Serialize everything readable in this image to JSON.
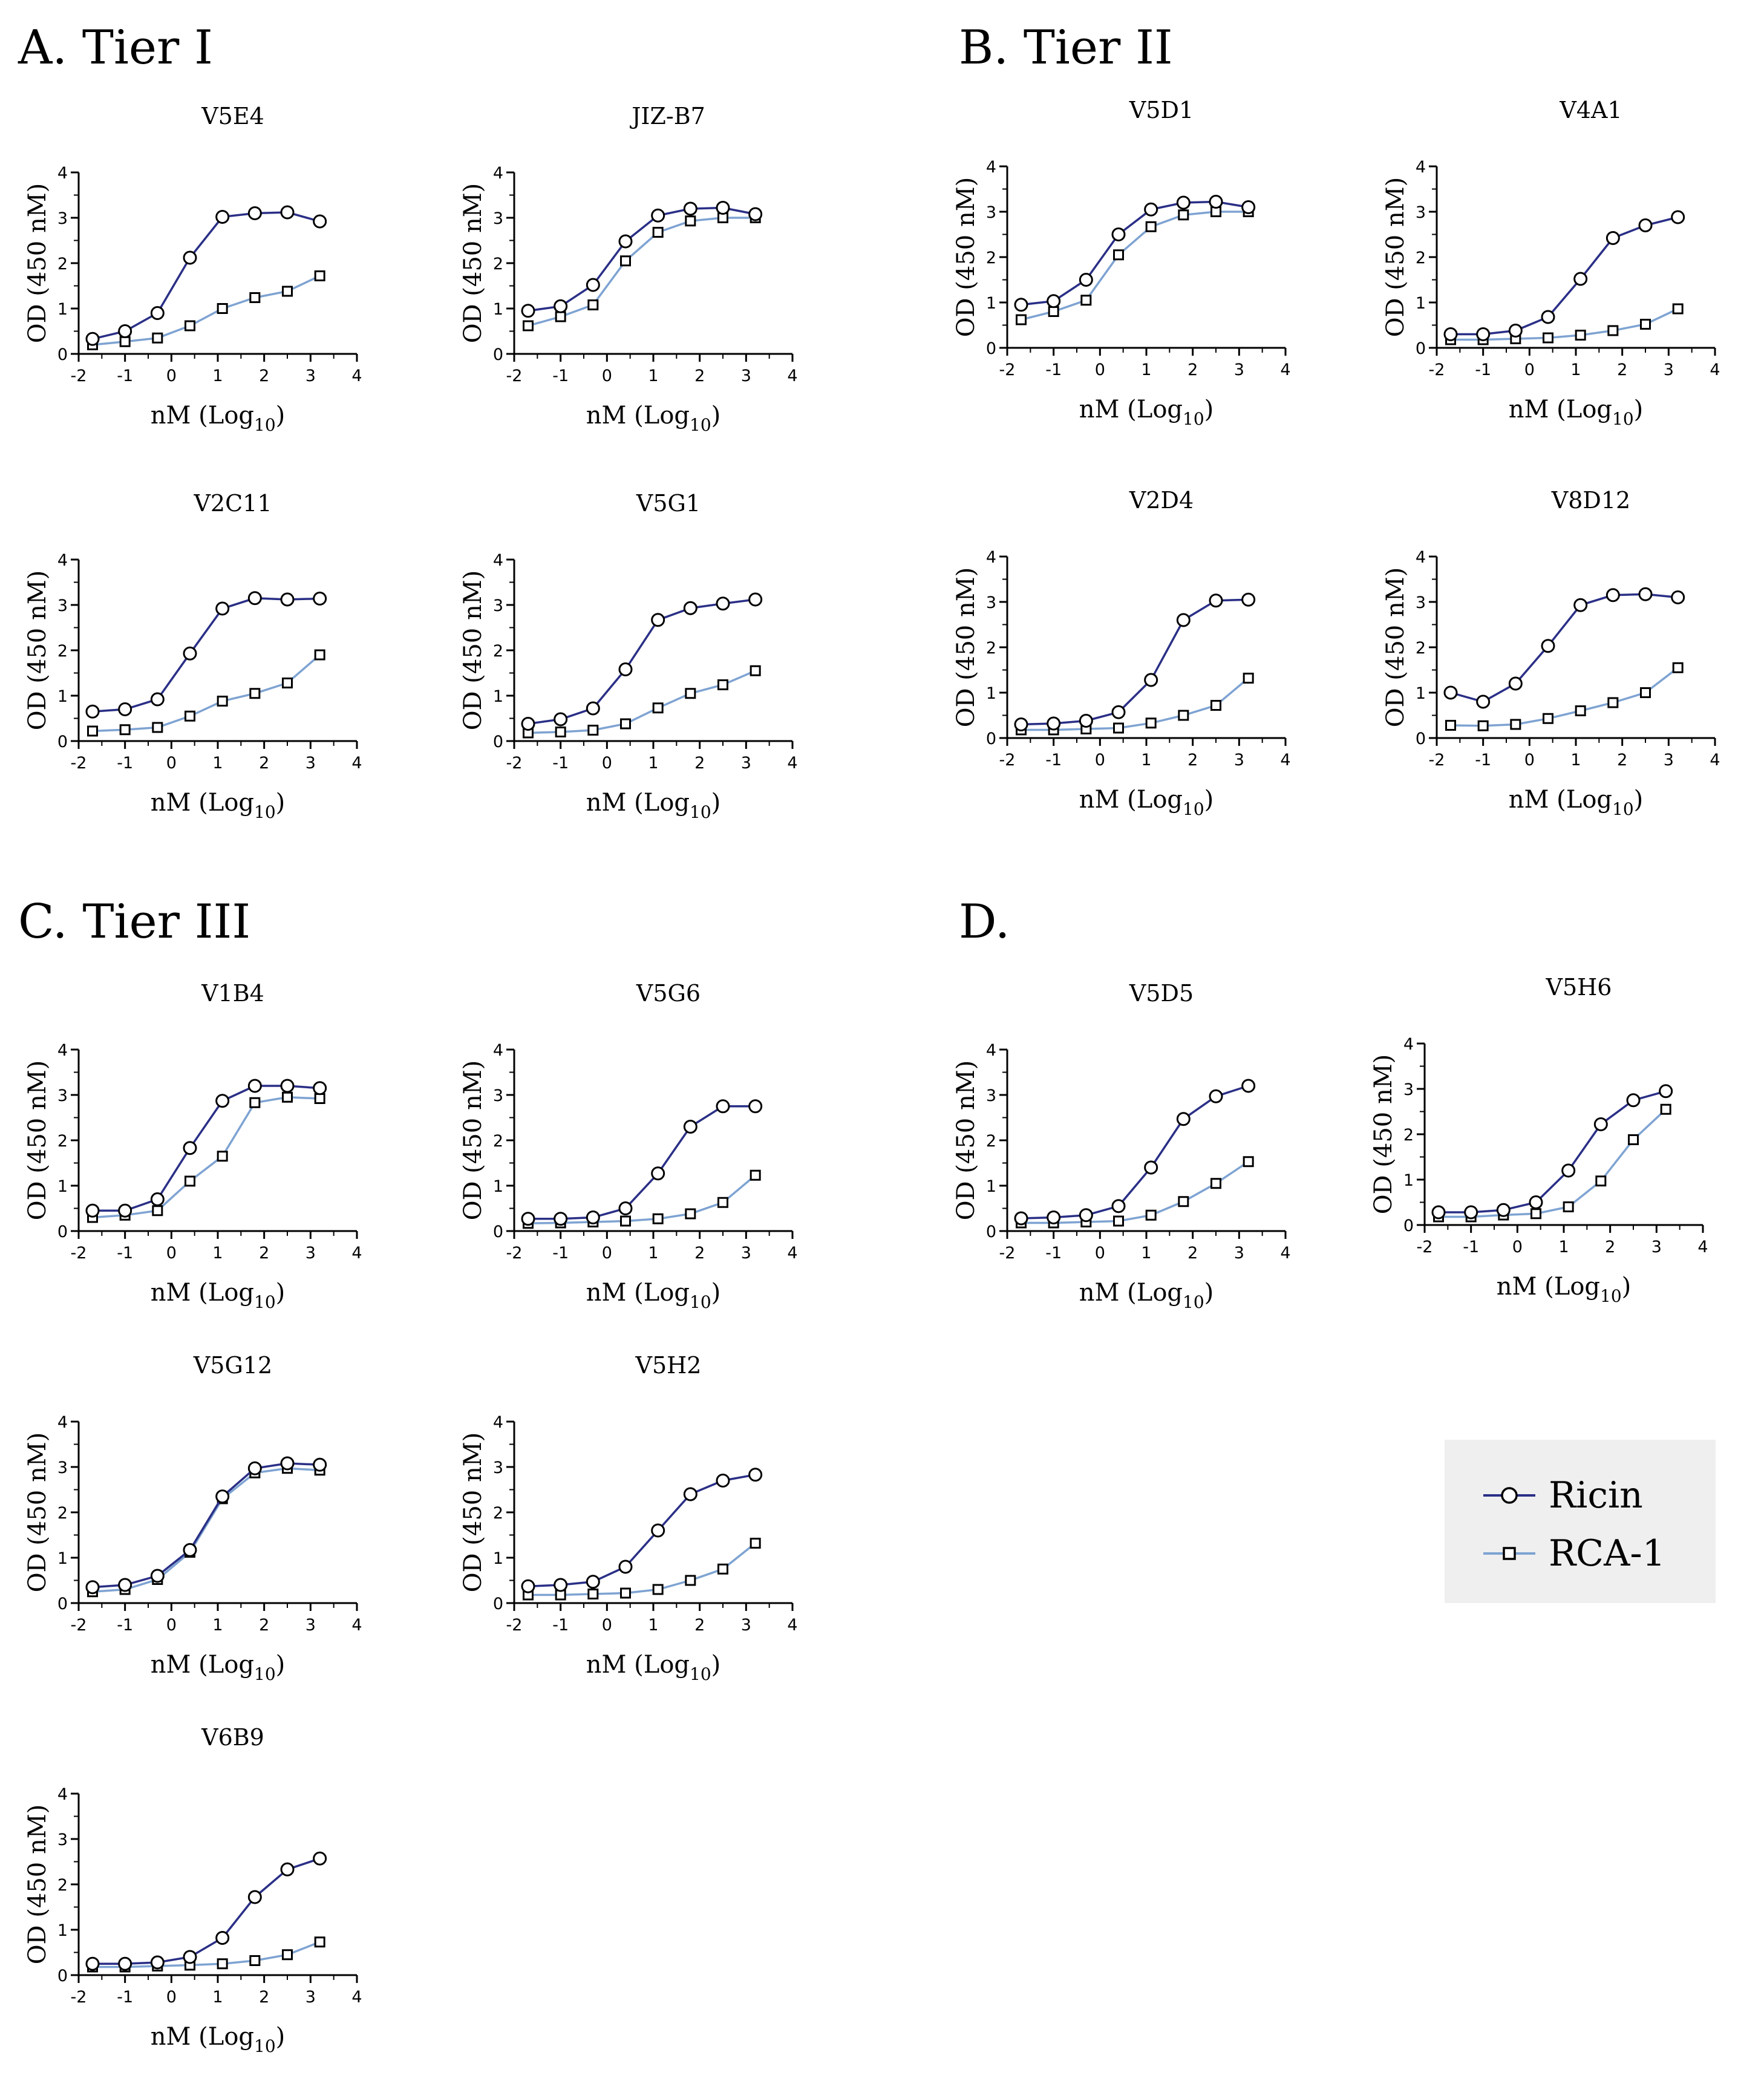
{
  "colors": {
    "ricin": "#2a2f86",
    "rca1": "#7ea3d2",
    "marker_fill": "#ffffff",
    "axis": "#000000",
    "legend_bg": "#efefef"
  },
  "axes": {
    "ylabel": "OD (450 nM)",
    "xlabel_base": "nM (Log",
    "xlabel_sub": "10",
    "xlabel_close": ")",
    "xticks": [
      "-2",
      "-1",
      "0",
      "1",
      "2",
      "3",
      "4"
    ],
    "yticks": [
      "0",
      "1",
      "2",
      "3",
      "4"
    ]
  },
  "legend": {
    "items": [
      {
        "label": "Ricin",
        "series": "ricin",
        "marker": "circle"
      },
      {
        "label": "RCA-1",
        "series": "rca1",
        "marker": "square"
      }
    ]
  },
  "sections": [
    {
      "id": "A",
      "title": "A. Tier I"
    },
    {
      "id": "B",
      "title": "B. Tier II"
    },
    {
      "id": "C",
      "title": "C. Tier III"
    },
    {
      "id": "D",
      "title": "D."
    }
  ],
  "chart_data": [
    {
      "type": "line",
      "title": "V5E4",
      "section": "A",
      "xlim": [
        -2,
        4
      ],
      "ylim": [
        0,
        4
      ],
      "x": [
        -1.7,
        -1.0,
        -0.3,
        0.4,
        1.1,
        1.8,
        2.5,
        3.2
      ],
      "series": [
        {
          "name": "Ricin",
          "values": [
            0.33,
            0.5,
            0.9,
            2.12,
            3.02,
            3.1,
            3.12,
            2.92
          ]
        },
        {
          "name": "RCA-1",
          "values": [
            0.2,
            0.27,
            0.35,
            0.62,
            1.0,
            1.24,
            1.38,
            1.72
          ]
        }
      ]
    },
    {
      "type": "line",
      "title": "JIZ-B7",
      "section": "A",
      "xlim": [
        -2,
        4
      ],
      "ylim": [
        0,
        4
      ],
      "x": [
        -1.7,
        -1.0,
        -0.3,
        0.4,
        1.1,
        1.8,
        2.5,
        3.2
      ],
      "series": [
        {
          "name": "Ricin",
          "values": [
            0.95,
            1.05,
            1.52,
            2.48,
            3.05,
            3.2,
            3.22,
            3.08
          ]
        },
        {
          "name": "RCA-1",
          "values": [
            0.62,
            0.82,
            1.08,
            2.05,
            2.68,
            2.93,
            3.0,
            3.0
          ]
        }
      ]
    },
    {
      "type": "line",
      "title": "V5D1",
      "section": "B",
      "xlim": [
        -2,
        4
      ],
      "ylim": [
        0,
        4
      ],
      "x": [
        -1.7,
        -1.0,
        -0.3,
        0.4,
        1.1,
        1.8,
        2.5,
        3.2
      ],
      "series": [
        {
          "name": "Ricin",
          "values": [
            0.95,
            1.03,
            1.5,
            2.5,
            3.05,
            3.2,
            3.22,
            3.1
          ]
        },
        {
          "name": "RCA-1",
          "values": [
            0.62,
            0.8,
            1.05,
            2.05,
            2.67,
            2.93,
            3.0,
            3.0
          ]
        }
      ]
    },
    {
      "type": "line",
      "title": "V4A1",
      "section": "B",
      "xlim": [
        -2,
        4
      ],
      "ylim": [
        0,
        4
      ],
      "x": [
        -1.7,
        -1.0,
        -0.3,
        0.4,
        1.1,
        1.8,
        2.5,
        3.2
      ],
      "series": [
        {
          "name": "Ricin",
          "values": [
            0.3,
            0.3,
            0.38,
            0.68,
            1.52,
            2.42,
            2.7,
            2.88
          ]
        },
        {
          "name": "RCA-1",
          "values": [
            0.18,
            0.18,
            0.2,
            0.22,
            0.28,
            0.38,
            0.52,
            0.86
          ]
        }
      ]
    },
    {
      "type": "line",
      "title": "V2C11",
      "section": "A",
      "xlim": [
        -2,
        4
      ],
      "ylim": [
        0,
        4
      ],
      "x": [
        -1.7,
        -1.0,
        -0.3,
        0.4,
        1.1,
        1.8,
        2.5,
        3.2
      ],
      "series": [
        {
          "name": "Ricin",
          "values": [
            0.65,
            0.7,
            0.92,
            1.93,
            2.92,
            3.15,
            3.12,
            3.14
          ]
        },
        {
          "name": "RCA-1",
          "values": [
            0.22,
            0.25,
            0.3,
            0.55,
            0.88,
            1.05,
            1.28,
            1.9
          ]
        }
      ]
    },
    {
      "type": "line",
      "title": "V5G1",
      "section": "A",
      "xlim": [
        -2,
        4
      ],
      "ylim": [
        0,
        4
      ],
      "x": [
        -1.7,
        -1.0,
        -0.3,
        0.4,
        1.1,
        1.8,
        2.5,
        3.2
      ],
      "series": [
        {
          "name": "Ricin",
          "values": [
            0.38,
            0.48,
            0.72,
            1.58,
            2.67,
            2.93,
            3.03,
            3.12
          ]
        },
        {
          "name": "RCA-1",
          "values": [
            0.18,
            0.2,
            0.24,
            0.38,
            0.73,
            1.05,
            1.24,
            1.55
          ]
        }
      ]
    },
    {
      "type": "line",
      "title": "V2D4",
      "section": "B",
      "xlim": [
        -2,
        4
      ],
      "ylim": [
        0,
        4
      ],
      "x": [
        -1.7,
        -1.0,
        -0.3,
        0.4,
        1.1,
        1.8,
        2.5,
        3.2
      ],
      "series": [
        {
          "name": "Ricin",
          "values": [
            0.3,
            0.32,
            0.38,
            0.57,
            1.28,
            2.6,
            3.03,
            3.05
          ]
        },
        {
          "name": "RCA-1",
          "values": [
            0.18,
            0.18,
            0.2,
            0.22,
            0.33,
            0.5,
            0.72,
            1.32
          ]
        }
      ]
    },
    {
      "type": "line",
      "title": "V8D12",
      "section": "B",
      "xlim": [
        -2,
        4
      ],
      "ylim": [
        0,
        4
      ],
      "x": [
        -1.7,
        -1.0,
        -0.3,
        0.4,
        1.1,
        1.8,
        2.5,
        3.2
      ],
      "series": [
        {
          "name": "Ricin",
          "values": [
            1.0,
            0.8,
            1.2,
            2.03,
            2.93,
            3.15,
            3.17,
            3.1
          ]
        },
        {
          "name": "RCA-1",
          "values": [
            0.28,
            0.27,
            0.3,
            0.43,
            0.6,
            0.78,
            1.0,
            1.55
          ]
        }
      ]
    },
    {
      "type": "line",
      "title": "V1B4",
      "section": "C",
      "xlim": [
        -2,
        4
      ],
      "ylim": [
        0,
        4
      ],
      "x": [
        -1.7,
        -1.0,
        -0.3,
        0.4,
        1.1,
        1.8,
        2.5,
        3.2
      ],
      "series": [
        {
          "name": "Ricin",
          "values": [
            0.45,
            0.45,
            0.7,
            1.83,
            2.87,
            3.2,
            3.2,
            3.15
          ]
        },
        {
          "name": "RCA-1",
          "values": [
            0.3,
            0.35,
            0.45,
            1.1,
            1.65,
            2.83,
            2.95,
            2.92
          ]
        }
      ]
    },
    {
      "type": "line",
      "title": "V5G6",
      "section": "C",
      "xlim": [
        -2,
        4
      ],
      "ylim": [
        0,
        4
      ],
      "x": [
        -1.7,
        -1.0,
        -0.3,
        0.4,
        1.1,
        1.8,
        2.5,
        3.2
      ],
      "series": [
        {
          "name": "Ricin",
          "values": [
            0.27,
            0.27,
            0.3,
            0.5,
            1.27,
            2.3,
            2.75,
            2.75
          ]
        },
        {
          "name": "RCA-1",
          "values": [
            0.17,
            0.18,
            0.2,
            0.22,
            0.27,
            0.38,
            0.63,
            1.23
          ]
        }
      ]
    },
    {
      "type": "line",
      "title": "V5D5",
      "section": "D",
      "xlim": [
        -2,
        4
      ],
      "ylim": [
        0,
        4
      ],
      "x": [
        -1.7,
        -1.0,
        -0.3,
        0.4,
        1.1,
        1.8,
        2.5,
        3.2
      ],
      "series": [
        {
          "name": "Ricin",
          "values": [
            0.28,
            0.3,
            0.35,
            0.55,
            1.4,
            2.47,
            2.97,
            3.2
          ]
        },
        {
          "name": "RCA-1",
          "values": [
            0.18,
            0.18,
            0.2,
            0.22,
            0.35,
            0.65,
            1.05,
            1.53
          ]
        }
      ]
    },
    {
      "type": "line",
      "title": "V5H6",
      "section": "D",
      "xlim": [
        -2,
        4
      ],
      "ylim": [
        0,
        4
      ],
      "x": [
        -1.7,
        -1.0,
        -0.3,
        0.4,
        1.1,
        1.8,
        2.5,
        3.2
      ],
      "series": [
        {
          "name": "Ricin",
          "values": [
            0.28,
            0.28,
            0.33,
            0.5,
            1.2,
            2.22,
            2.75,
            2.95
          ]
        },
        {
          "name": "RCA-1",
          "values": [
            0.18,
            0.18,
            0.22,
            0.25,
            0.4,
            0.97,
            1.88,
            2.55
          ]
        }
      ]
    },
    {
      "type": "line",
      "title": "V5G12",
      "section": "C",
      "xlim": [
        -2,
        4
      ],
      "ylim": [
        0,
        4
      ],
      "x": [
        -1.7,
        -1.0,
        -0.3,
        0.4,
        1.1,
        1.8,
        2.5,
        3.2
      ],
      "series": [
        {
          "name": "Ricin",
          "values": [
            0.35,
            0.4,
            0.6,
            1.17,
            2.35,
            2.97,
            3.08,
            3.05
          ]
        },
        {
          "name": "RCA-1",
          "values": [
            0.25,
            0.3,
            0.52,
            1.12,
            2.3,
            2.87,
            2.97,
            2.93
          ]
        }
      ]
    },
    {
      "type": "line",
      "title": "V5H2",
      "section": "C",
      "xlim": [
        -2,
        4
      ],
      "ylim": [
        0,
        4
      ],
      "x": [
        -1.7,
        -1.0,
        -0.3,
        0.4,
        1.1,
        1.8,
        2.5,
        3.2
      ],
      "series": [
        {
          "name": "Ricin",
          "values": [
            0.37,
            0.4,
            0.47,
            0.8,
            1.6,
            2.4,
            2.7,
            2.83
          ]
        },
        {
          "name": "RCA-1",
          "values": [
            0.18,
            0.18,
            0.2,
            0.22,
            0.3,
            0.5,
            0.75,
            1.32
          ]
        }
      ]
    },
    {
      "type": "line",
      "title": "V6B9",
      "section": "C",
      "xlim": [
        -2,
        4
      ],
      "ylim": [
        0,
        4
      ],
      "x": [
        -1.7,
        -1.0,
        -0.3,
        0.4,
        1.1,
        1.8,
        2.5,
        3.2
      ],
      "series": [
        {
          "name": "Ricin",
          "values": [
            0.25,
            0.25,
            0.28,
            0.4,
            0.82,
            1.72,
            2.33,
            2.57
          ]
        },
        {
          "name": "RCA-1",
          "values": [
            0.18,
            0.18,
            0.2,
            0.22,
            0.25,
            0.32,
            0.45,
            0.73
          ]
        }
      ]
    }
  ]
}
